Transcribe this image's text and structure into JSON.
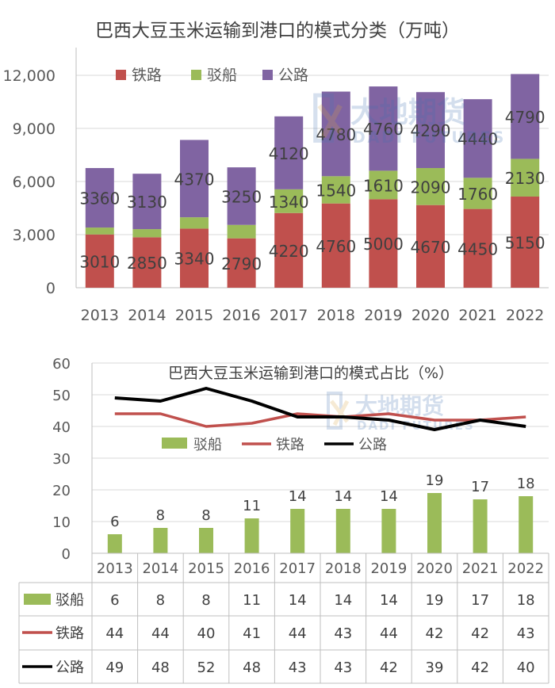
{
  "chart_data": [
    {
      "type": "bar",
      "stacked": true,
      "title": "巴西大豆玉米运输到港口的模式分类（万吨）",
      "categories": [
        "2013",
        "2014",
        "2015",
        "2016",
        "2017",
        "2018",
        "2019",
        "2020",
        "2021",
        "2022"
      ],
      "ylim": [
        0,
        12000
      ],
      "yticks": [
        0,
        3000,
        6000,
        9000,
        12000
      ],
      "ytick_labels": [
        "0",
        "3,000",
        "6,000",
        "9,000",
        "12,000"
      ],
      "series": [
        {
          "name": "铁路",
          "color": "#C0504D",
          "values": [
            3010,
            2850,
            3340,
            2790,
            4220,
            4760,
            5000,
            4670,
            4450,
            5150
          ],
          "labels": [
            "3010",
            "2850",
            "3340",
            "2790",
            "4220",
            "4760",
            "5000",
            "4670",
            "4450",
            "5150"
          ]
        },
        {
          "name": "驳船",
          "color": "#9BBB59",
          "values": [
            390,
            460,
            640,
            760,
            1340,
            1540,
            1610,
            2090,
            1760,
            2130
          ],
          "labels": [
            "",
            "",
            "",
            "",
            "1340",
            "1540",
            "1610",
            "2090",
            "1760",
            "2130"
          ]
        },
        {
          "name": "公路",
          "color": "#8064A2",
          "values": [
            3360,
            3130,
            4370,
            3250,
            4120,
            4780,
            4760,
            4290,
            4440,
            4790
          ],
          "labels": [
            "3360",
            "3130",
            "4370",
            "3250",
            "4120",
            "4780",
            "4760",
            "4290",
            "4440",
            "4790"
          ]
        }
      ],
      "legend": "top-left"
    },
    {
      "type": "bar+line",
      "title": "巴西大豆玉米运输到港口的模式占比（%）",
      "categories": [
        "2013",
        "2014",
        "2015",
        "2016",
        "2017",
        "2018",
        "2019",
        "2020",
        "2021",
        "2022"
      ],
      "ylim": [
        0,
        60
      ],
      "yticks": [
        0,
        10,
        20,
        30,
        40,
        50,
        60
      ],
      "bar_series": {
        "name": "驳船",
        "color": "#9BBB59",
        "values": [
          6,
          8,
          8,
          11,
          14,
          14,
          14,
          19,
          17,
          18
        ],
        "labels": [
          "6",
          "8",
          "8",
          "11",
          "14",
          "14",
          "14",
          "19",
          "17",
          "18"
        ]
      },
      "line_series": [
        {
          "name": "铁路",
          "color": "#C0504D",
          "values": [
            44,
            44,
            40,
            41,
            44,
            43,
            44,
            42,
            42,
            43
          ]
        },
        {
          "name": "公路",
          "color": "#000000",
          "values": [
            49,
            48,
            52,
            48,
            43,
            43,
            42,
            39,
            42,
            40
          ]
        }
      ],
      "legend": "center",
      "table": {
        "rows": [
          {
            "name": "驳船",
            "values": [
              "6",
              "8",
              "8",
              "11",
              "14",
              "14",
              "14",
              "19",
              "17",
              "18"
            ]
          },
          {
            "name": "铁路",
            "values": [
              "44",
              "44",
              "40",
              "41",
              "44",
              "43",
              "44",
              "42",
              "42",
              "43"
            ]
          },
          {
            "name": "公路",
            "values": [
              "49",
              "48",
              "52",
              "48",
              "43",
              "43",
              "42",
              "39",
              "42",
              "40"
            ]
          }
        ]
      }
    }
  ],
  "watermark": {
    "brand": "大地期货",
    "brand_en": "DADI FUTURES"
  }
}
